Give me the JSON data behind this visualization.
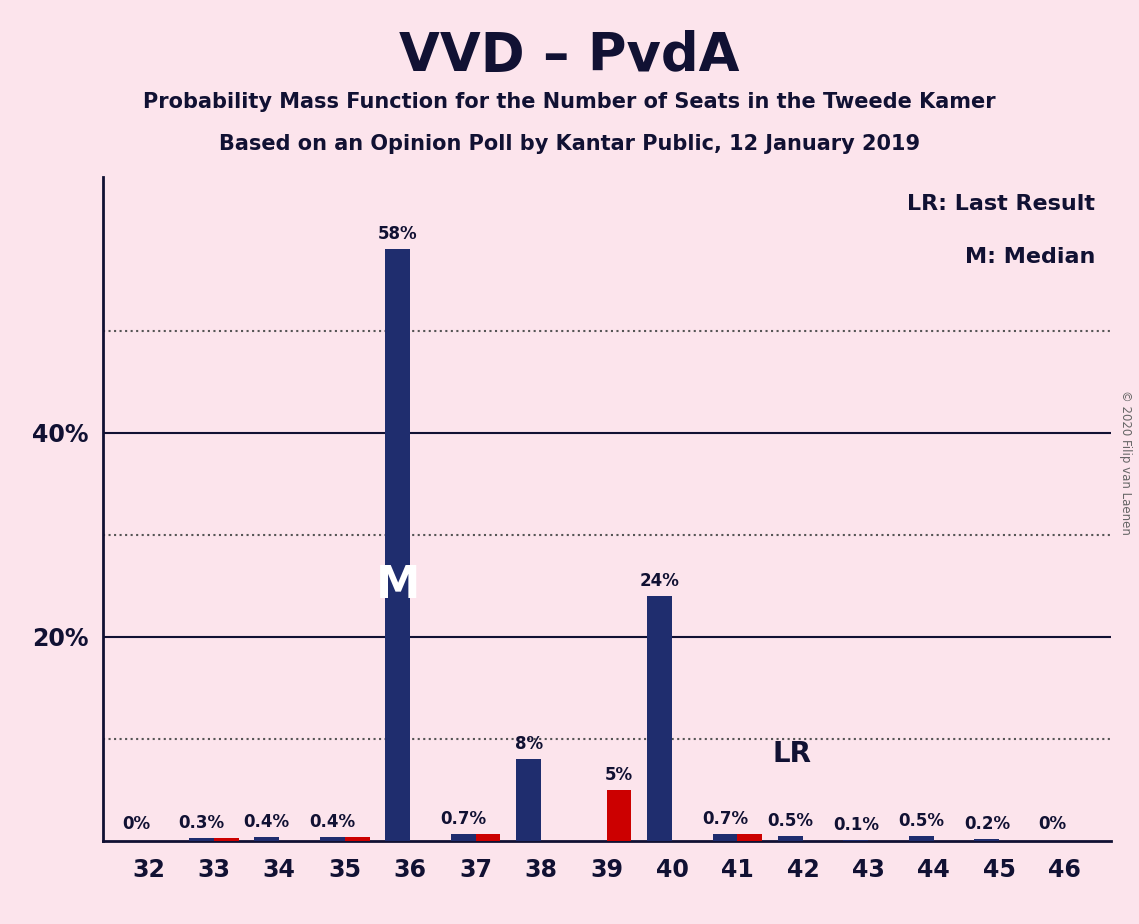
{
  "title": "VVD – PvdA",
  "subtitle1": "Probability Mass Function for the Number of Seats in the Tweede Kamer",
  "subtitle2": "Based on an Opinion Poll by Kantar Public, 12 January 2019",
  "copyright": "© 2020 Filip van Laenen",
  "categories": [
    32,
    33,
    34,
    35,
    36,
    37,
    38,
    39,
    40,
    41,
    42,
    43,
    44,
    45,
    46
  ],
  "vvd_values": [
    0.0,
    0.3,
    0.4,
    0.4,
    58.0,
    0.7,
    8.0,
    0.0,
    24.0,
    0.7,
    0.5,
    0.1,
    0.5,
    0.2,
    0.0
  ],
  "pvda_values": [
    0.0,
    0.3,
    0.0,
    0.4,
    0.0,
    0.7,
    0.0,
    5.0,
    0.0,
    0.7,
    0.0,
    0.0,
    0.0,
    0.0,
    0.0
  ],
  "vvd_color": "#1f2d6e",
  "pvda_color": "#cc0000",
  "background_color": "#fce4ec",
  "text_color": "#111133",
  "median_seat": 36,
  "lr_seat": 41,
  "legend_lr": "LR: Last Result",
  "legend_m": "M: Median",
  "ylim": [
    0,
    65
  ],
  "bar_width": 0.38,
  "bar_labels_vvd": [
    "0%",
    "0.3%",
    "0.4%",
    "0.4%",
    "58%",
    "0.7%",
    "8%",
    "",
    "24%",
    "0.7%",
    "0.5%",
    "0.1%",
    "0.5%",
    "0.2%",
    "0%"
  ],
  "bar_labels_pvda": [
    "",
    "",
    "",
    "",
    "",
    "",
    "",
    "5%",
    "",
    "",
    "",
    "",
    "",
    "",
    ""
  ],
  "grid_solid": [
    20,
    40
  ],
  "grid_dotted": [
    10,
    30,
    50
  ],
  "ytick_positions": [
    20,
    40
  ],
  "ytick_labels": [
    "20%",
    "40%"
  ]
}
